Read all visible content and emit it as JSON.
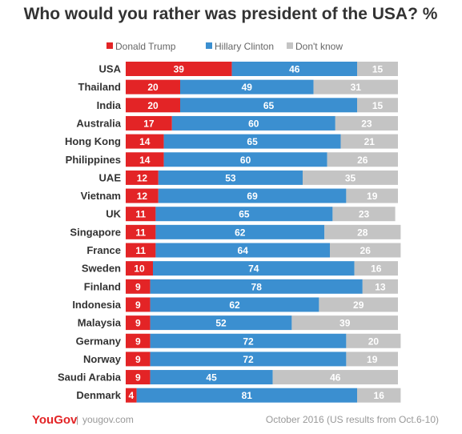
{
  "chart_data": {
    "type": "bar",
    "orientation": "horizontal",
    "stacked": true,
    "title": "Who would you rather was president of the USA? %",
    "legend_position": "top",
    "categories": [
      "USA",
      "Thailand",
      "India",
      "Australia",
      "Hong Kong",
      "Philippines",
      "UAE",
      "Vietnam",
      "UK",
      "Singapore",
      "France",
      "Sweden",
      "Finland",
      "Indonesia",
      "Malaysia",
      "Germany",
      "Norway",
      "Saudi Arabia",
      "Denmark"
    ],
    "series": [
      {
        "name": "Donald Trump",
        "color": "#e32426",
        "values": [
          39,
          20,
          20,
          17,
          14,
          14,
          12,
          12,
          11,
          11,
          11,
          10,
          9,
          9,
          9,
          9,
          9,
          9,
          4
        ]
      },
      {
        "name": "Hillary Clinton",
        "color": "#3b8fd0",
        "values": [
          46,
          49,
          65,
          60,
          65,
          60,
          53,
          69,
          65,
          62,
          64,
          74,
          78,
          62,
          52,
          72,
          72,
          45,
          81
        ]
      },
      {
        "name": "Don't know",
        "color": "#c4c4c4",
        "values": [
          15,
          31,
          15,
          23,
          21,
          26,
          35,
          19,
          23,
          28,
          26,
          16,
          13,
          29,
          39,
          20,
          19,
          46,
          16
        ]
      }
    ],
    "xlim": [
      0,
      100
    ],
    "grid": false
  },
  "footer": {
    "brand": "YouGov",
    "separator": "|",
    "site": "yougov.com",
    "note": "October 2016 (US results from Oct.6-10)"
  }
}
